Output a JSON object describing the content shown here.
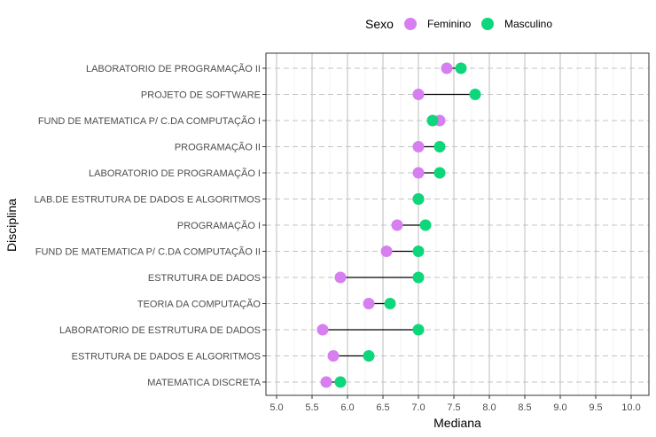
{
  "chart_data": {
    "type": "scatter",
    "subtype": "dumbbell",
    "xlabel": "Mediana",
    "ylabel": "Disciplina",
    "xlim": [
      4.85,
      10.25
    ],
    "xticks": [
      "5.0",
      "5.5",
      "6.0",
      "6.5",
      "7.0",
      "7.5",
      "8.0",
      "8.5",
      "9.0",
      "9.5",
      "10.0"
    ],
    "grid": true,
    "legend": {
      "title": "Sexo",
      "position": "top",
      "entries": [
        {
          "label": "Feminino",
          "color": "#d77ef0"
        },
        {
          "label": "Masculino",
          "color": "#0dd77a"
        }
      ]
    },
    "categories": [
      "LABORATORIO DE PROGRAMAÇÃO II",
      "PROJETO DE SOFTWARE",
      "FUND DE MATEMATICA P/ C.DA COMPUTAÇÃO I",
      "PROGRAMAÇÃO II",
      "LABORATORIO DE PROGRAMAÇÃO I",
      "LAB.DE ESTRUTURA DE DADOS E ALGORITMOS",
      "PROGRAMAÇÃO I",
      "FUND DE MATEMATICA P/ C.DA COMPUTAÇÃO II",
      "ESTRUTURA DE DADOS",
      "TEORIA DA COMPUTAÇÃO",
      "LABORATORIO DE ESTRUTURA DE DADOS",
      "ESTRUTURA DE DADOS E ALGORITMOS",
      "MATEMATICA DISCRETA"
    ],
    "series": [
      {
        "name": "Feminino",
        "color": "#d77ef0",
        "values": [
          7.4,
          7.0,
          7.3,
          7.0,
          7.0,
          7.0,
          6.7,
          6.55,
          5.9,
          6.3,
          5.65,
          5.8,
          5.7
        ]
      },
      {
        "name": "Masculino",
        "color": "#0dd77a",
        "values": [
          7.6,
          7.8,
          7.2,
          7.3,
          7.3,
          7.0,
          7.1,
          7.0,
          7.0,
          6.6,
          7.0,
          6.3,
          5.9
        ]
      }
    ]
  }
}
